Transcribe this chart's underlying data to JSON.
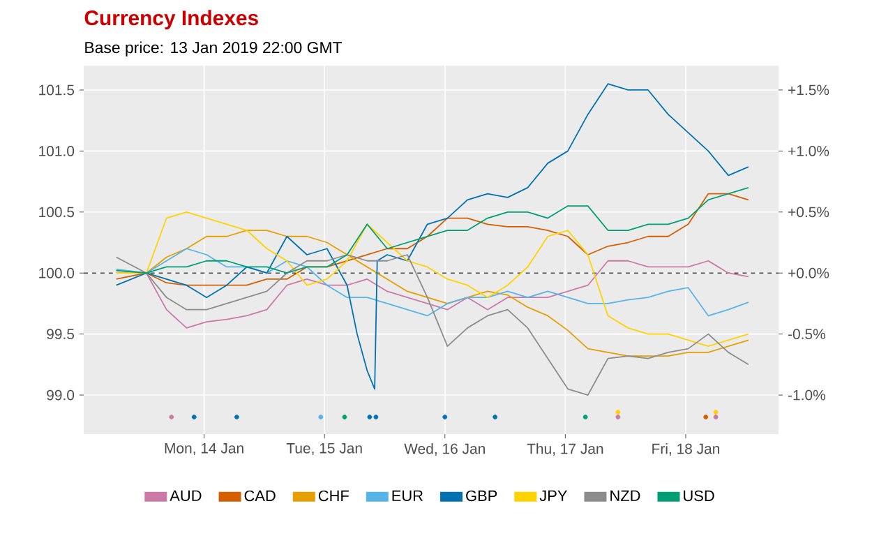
{
  "chart_data": {
    "type": "line",
    "title": "Currency Indexes",
    "subtitle": "Base price: 13 Jan 2019 22:00 GMT",
    "x": [
      "2019-01-13T16:00",
      "2019-01-13T22:00",
      "2019-01-14T02:00",
      "2019-01-14T06:00",
      "2019-01-14T10:00",
      "2019-01-14T14:00",
      "2019-01-14T18:00",
      "2019-01-14T22:00",
      "2019-01-15T02:00",
      "2019-01-15T06:00",
      "2019-01-15T10:00",
      "2019-01-15T14:00",
      "2019-01-15T18:00",
      "2019-01-15T22:00",
      "2019-01-16T02:00",
      "2019-01-16T06:00",
      "2019-01-16T10:00",
      "2019-01-16T14:00",
      "2019-01-16T18:00",
      "2019-01-16T22:00",
      "2019-01-17T02:00",
      "2019-01-17T06:00",
      "2019-01-17T10:00",
      "2019-01-17T14:00",
      "2019-01-17T18:00",
      "2019-01-17T22:00",
      "2019-01-18T02:00",
      "2019-01-18T06:00",
      "2019-01-18T10:00",
      "2019-01-18T14:00",
      "2019-01-18T18:00",
      "2019-01-18T22:00"
    ],
    "series": [
      {
        "name": "AUD",
        "color": "#cc79a7",
        "values": [
          100.0,
          100,
          99.7,
          99.55,
          99.6,
          99.62,
          99.65,
          99.7,
          99.9,
          99.95,
          99.9,
          99.9,
          99.95,
          99.85,
          99.8,
          99.75,
          99.7,
          99.8,
          99.7,
          99.8,
          99.8,
          99.8,
          99.85,
          99.9,
          100.1,
          100.1,
          100.05,
          100.05,
          100.05,
          100.1,
          100.0,
          99.97
        ]
      },
      {
        "name": "CAD",
        "color": "#d55e00",
        "values": [
          99.95,
          100,
          99.92,
          99.9,
          99.9,
          99.9,
          99.9,
          99.95,
          99.95,
          100.05,
          100.05,
          100.1,
          100.15,
          100.2,
          100.2,
          100.3,
          100.45,
          100.45,
          100.4,
          100.38,
          100.38,
          100.35,
          100.3,
          100.15,
          100.22,
          100.25,
          100.3,
          100.3,
          100.4,
          100.65,
          100.65,
          100.6
        ]
      },
      {
        "name": "CHF",
        "color": "#e69f00",
        "values": [
          100.02,
          100,
          100.13,
          100.2,
          100.3,
          100.3,
          100.35,
          100.35,
          100.3,
          100.3,
          100.25,
          100.15,
          100.05,
          99.95,
          99.85,
          99.8,
          99.75,
          99.8,
          99.85,
          99.82,
          99.72,
          99.65,
          99.53,
          99.38,
          99.35,
          99.32,
          99.32,
          99.32,
          99.35,
          99.35,
          99.4,
          99.45
        ]
      },
      {
        "name": "EUR",
        "color": "#56b4e9",
        "values": [
          100.03,
          100,
          100.1,
          100.2,
          100.15,
          100.05,
          100.05,
          100.0,
          100.1,
          100.05,
          99.9,
          99.8,
          99.8,
          99.75,
          99.7,
          99.65,
          99.75,
          99.8,
          99.8,
          99.85,
          99.8,
          99.85,
          99.8,
          99.75,
          99.75,
          99.78,
          99.8,
          99.85,
          99.88,
          99.65,
          99.7,
          99.76
        ]
      },
      {
        "name": "GBP",
        "color": "#0072b2",
        "x": [
          "2019-01-13T16:00",
          "2019-01-13T22:00",
          "2019-01-14T02:00",
          "2019-01-14T06:00",
          "2019-01-14T10:00",
          "2019-01-14T14:00",
          "2019-01-14T18:00",
          "2019-01-14T22:00",
          "2019-01-15T02:00",
          "2019-01-15T06:00",
          "2019-01-15T10:00",
          "2019-01-15T14:00",
          "2019-01-15T16:00",
          "2019-01-15T18:00",
          "2019-01-15T19:30",
          "2019-01-15T20:00",
          "2019-01-15T22:00",
          "2019-01-16T02:00",
          "2019-01-16T06:00",
          "2019-01-16T10:00",
          "2019-01-16T14:00",
          "2019-01-16T18:00",
          "2019-01-16T22:00",
          "2019-01-17T02:00",
          "2019-01-17T06:00",
          "2019-01-17T10:00",
          "2019-01-17T14:00",
          "2019-01-17T18:00",
          "2019-01-17T22:00",
          "2019-01-18T02:00",
          "2019-01-18T06:00",
          "2019-01-18T10:00",
          "2019-01-18T14:00",
          "2019-01-18T18:00",
          "2019-01-18T22:00"
        ],
        "values": [
          99.9,
          100,
          99.95,
          99.9,
          99.8,
          99.9,
          100.05,
          100.0,
          100.3,
          100.15,
          100.2,
          99.9,
          99.5,
          99.2,
          99.05,
          100.1,
          100.15,
          100.1,
          100.4,
          100.45,
          100.6,
          100.65,
          100.62,
          100.7,
          100.9,
          101.0,
          101.3,
          101.55,
          101.5,
          101.5,
          101.3,
          101.15,
          101.0,
          100.8,
          100.87
        ]
      },
      {
        "name": "JPY",
        "color": "#ffd200",
        "values": [
          100.0,
          100,
          100.45,
          100.5,
          100.45,
          100.4,
          100.35,
          100.2,
          100.1,
          99.9,
          99.95,
          100.1,
          100.4,
          100.25,
          100.1,
          100.05,
          99.95,
          99.9,
          99.8,
          99.9,
          100.05,
          100.3,
          100.35,
          100.15,
          99.65,
          99.55,
          99.5,
          99.5,
          99.45,
          99.4,
          99.45,
          99.5
        ]
      },
      {
        "name": "NZD",
        "color": "#8c8c8c",
        "values": [
          100.13,
          100,
          99.8,
          99.7,
          99.7,
          99.75,
          99.8,
          99.85,
          100.0,
          100.1,
          100.1,
          100.15,
          100.1,
          100.1,
          100.15,
          99.8,
          99.4,
          99.55,
          99.65,
          99.7,
          99.55,
          99.3,
          99.05,
          99.0,
          99.3,
          99.32,
          99.3,
          99.35,
          99.38,
          99.5,
          99.35,
          99.25
        ]
      },
      {
        "name": "USD",
        "color": "#009e73",
        "values": [
          100.02,
          100,
          100.05,
          100.05,
          100.1,
          100.1,
          100.05,
          100.05,
          100.0,
          100.05,
          100.05,
          100.15,
          100.4,
          100.2,
          100.25,
          100.3,
          100.35,
          100.35,
          100.45,
          100.5,
          100.5,
          100.45,
          100.55,
          100.55,
          100.35,
          100.35,
          100.4,
          100.4,
          100.45,
          100.6,
          100.65,
          100.7
        ]
      },
      {
        "type": "scatter",
        "marker": "circle",
        "x": [
          "2019-01-14T03:00",
          "2019-01-14T07:30",
          "2019-01-14T16:00",
          "2019-01-15T08:45",
          "2019-01-15T13:30",
          "2019-01-15T18:30",
          "2019-01-15T19:45",
          "2019-01-16T09:30",
          "2019-01-16T19:30",
          "2019-01-17T13:30",
          "2019-01-17T20:00",
          "2019-01-17T20:00",
          "2019-01-18T13:30",
          "2019-01-18T15:30",
          "2019-01-18T15:30"
        ],
        "values": [
          98.82,
          98.82,
          98.82,
          98.82,
          98.82,
          98.82,
          98.82,
          98.82,
          98.82,
          98.82,
          98.86,
          98.82,
          98.82,
          98.86,
          98.82
        ],
        "colors": [
          "#cc79a7",
          "#0072b2",
          "#0072b2",
          "#56b4e9",
          "#009e73",
          "#0072b2",
          "#0072b2",
          "#0072b2",
          "#0072b2",
          "#009e73",
          "#ffd200",
          "#cc79a7",
          "#d55e00",
          "#ffd200",
          "#cc79a7"
        ]
      }
    ],
    "xlim": [
      "2019-01-13T09:30",
      "2019-01-19T04:00"
    ],
    "xticks": [
      {
        "value": "2019-01-14T09:30",
        "label": "Mon, 14 Jan"
      },
      {
        "value": "2019-01-15T09:30",
        "label": "Tue, 15 Jan"
      },
      {
        "value": "2019-01-16T09:30",
        "label": "Wed, 16 Jan"
      },
      {
        "value": "2019-01-17T09:30",
        "label": "Thu, 17 Jan"
      },
      {
        "value": "2019-01-18T09:30",
        "label": "Fri, 18 Jan"
      }
    ],
    "ylim": [
      98.68,
      101.7
    ],
    "yticks": [
      {
        "value": 99.0,
        "label": "99.0"
      },
      {
        "value": 99.5,
        "label": "99.5"
      },
      {
        "value": 100.0,
        "label": "100.0"
      },
      {
        "value": 100.5,
        "label": "100.5"
      },
      {
        "value": 101.0,
        "label": "101.0"
      },
      {
        "value": 101.5,
        "label": "101.5"
      }
    ],
    "y2lim": [
      -1.32,
      1.7
    ],
    "y2ticks": [
      {
        "value": -1.0,
        "label": "-1.0%"
      },
      {
        "value": -0.5,
        "label": "-0.5%"
      },
      {
        "value": 0.0,
        "label": "+0.0%"
      },
      {
        "value": 0.5,
        "label": "+0.5%"
      },
      {
        "value": 1.0,
        "label": "+1.0%"
      },
      {
        "value": 1.5,
        "label": "+1.5%"
      }
    ],
    "ref_lines": [
      {
        "axis": "y",
        "value": 100,
        "color": "#404040",
        "line_style": "dashed"
      }
    ],
    "grid": true,
    "legend": "bottom"
  }
}
